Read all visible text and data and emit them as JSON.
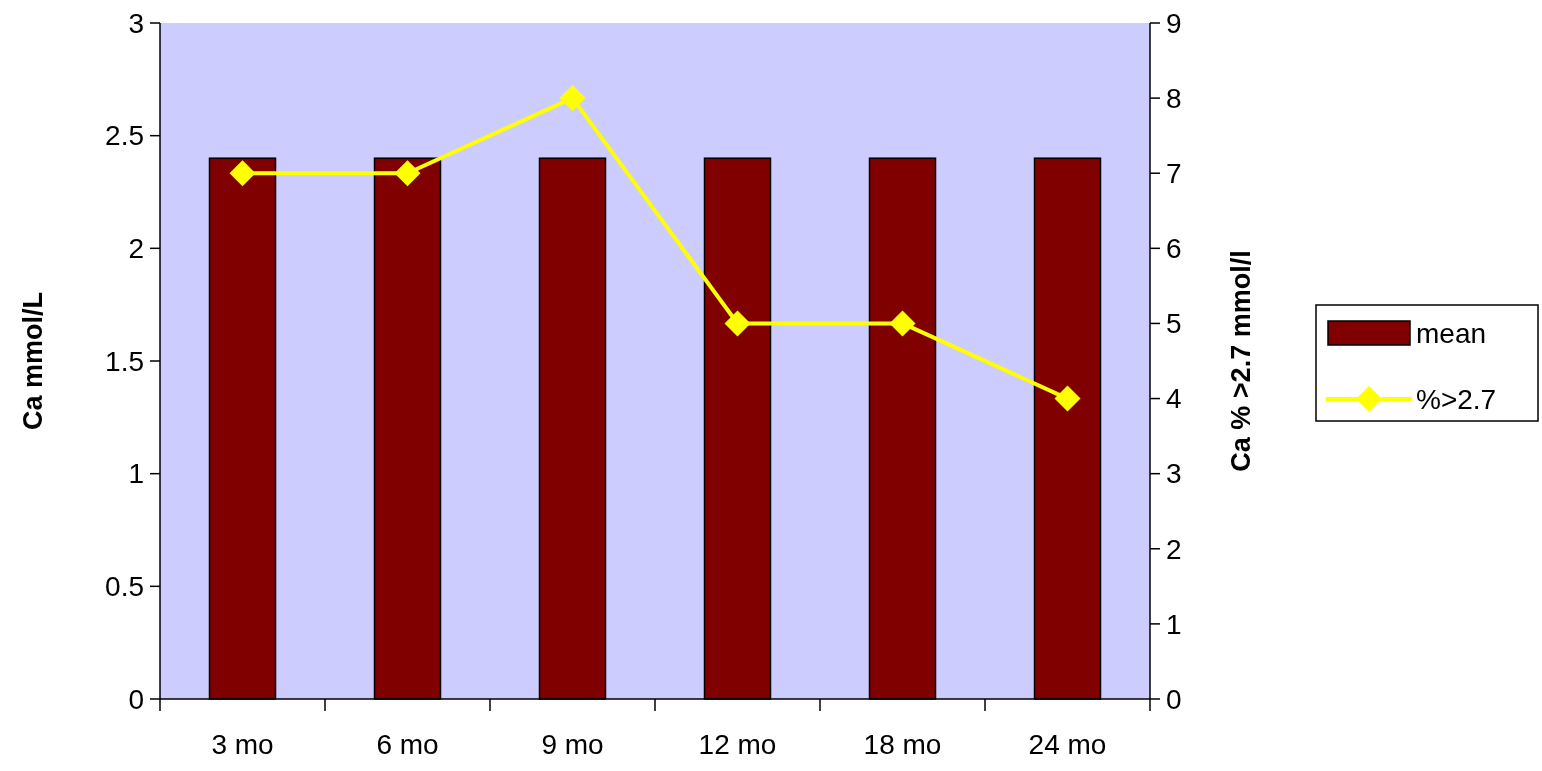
{
  "chart_data": {
    "type": "bar",
    "categories": [
      "3 mo",
      "6 mo",
      "9 mo",
      "12 mo",
      "18 mo",
      "24 mo"
    ],
    "series": [
      {
        "name": "mean",
        "color": "#800000",
        "values": [
          2.4,
          2.4,
          2.4,
          2.4,
          2.4,
          2.4
        ]
      },
      {
        "name": "%>2.7",
        "type": "line",
        "axis": "y2",
        "color": "#ffff00",
        "values": [
          7,
          7,
          8,
          5,
          5,
          4
        ]
      }
    ],
    "ylabel": "Ca mmol/L",
    "y2label": "Ca % >2.7 mmol/l",
    "ylim": [
      0,
      3
    ],
    "yticks": [
      0,
      0.5,
      1,
      1.5,
      2,
      2.5,
      3
    ],
    "y2lim": [
      0,
      9
    ],
    "y2ticks": [
      0,
      1,
      2,
      3,
      4,
      5,
      6,
      7,
      8,
      9
    ],
    "marker": "diamond",
    "line_style": "solid",
    "grid": false,
    "legend": "right"
  }
}
